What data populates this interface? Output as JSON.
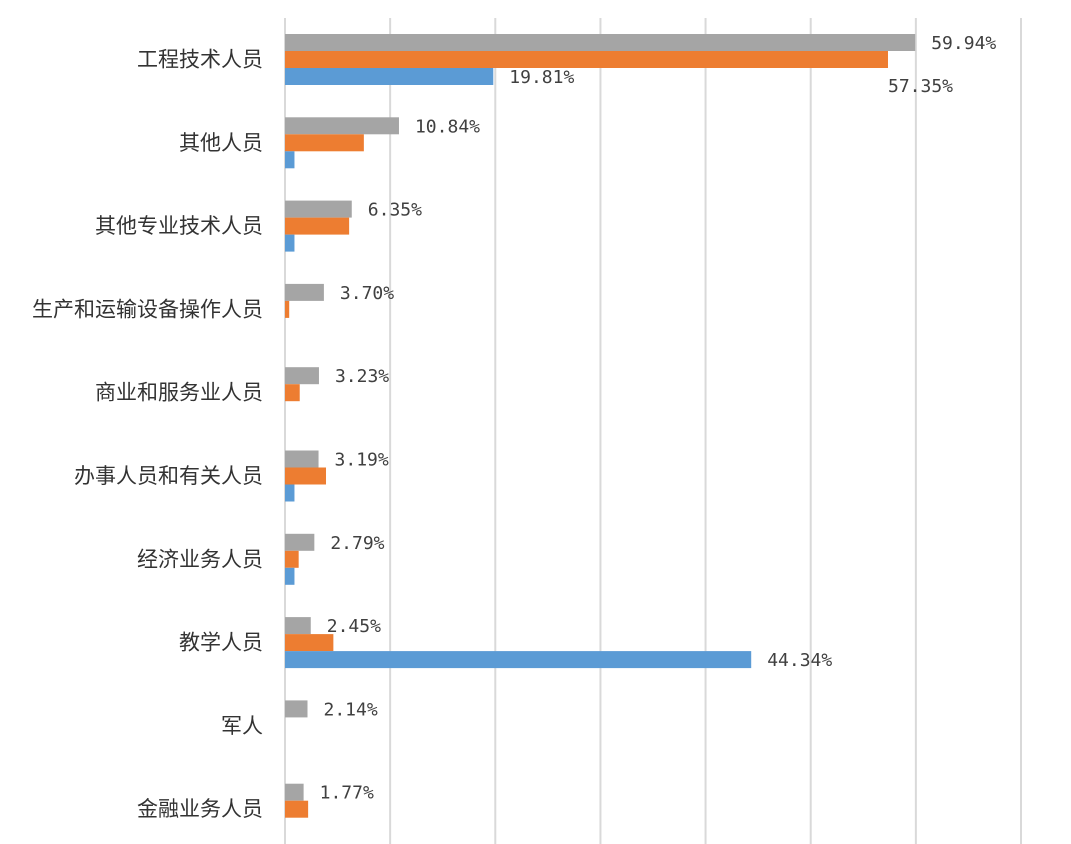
{
  "chart_data": {
    "type": "bar",
    "orientation": "horizontal",
    "categories": [
      "工程技术人员",
      "其他人员",
      "其他专业技术人员",
      "生产和运输设备操作人员",
      "商业和服务业人员",
      "办事人员和有关人员",
      "经济业务人员",
      "教学人员",
      "军人",
      "金融业务人员"
    ],
    "series": [
      {
        "color": "#A5A5A5",
        "values": [
          59.94,
          10.84,
          6.35,
          3.7,
          3.23,
          3.19,
          2.79,
          2.45,
          2.14,
          1.77
        ],
        "labels": [
          "59.94%",
          "10.84%",
          "6.35%",
          "3.70%",
          "3.23%",
          "3.19%",
          "2.79%",
          "2.45%",
          "2.14%",
          "1.77%"
        ]
      },
      {
        "color": "#ED7D31",
        "values": [
          57.35,
          7.5,
          6.1,
          0.4,
          1.4,
          3.9,
          1.3,
          4.6,
          0,
          2.2
        ],
        "labels": [
          "57.35%",
          "",
          "",
          "",
          "",
          "",
          "",
          "",
          "",
          ""
        ]
      },
      {
        "color": "#5B9BD5",
        "values": [
          19.81,
          0.9,
          0.9,
          0,
          0,
          0.9,
          0.9,
          44.34,
          0,
          0
        ],
        "labels": [
          "19.81%",
          "",
          "",
          "",
          "",
          "",
          "",
          "44.34%",
          "",
          ""
        ]
      }
    ],
    "xlim": [
      0,
      70
    ],
    "gridline_step": 10,
    "grid": true,
    "legend": "none"
  }
}
